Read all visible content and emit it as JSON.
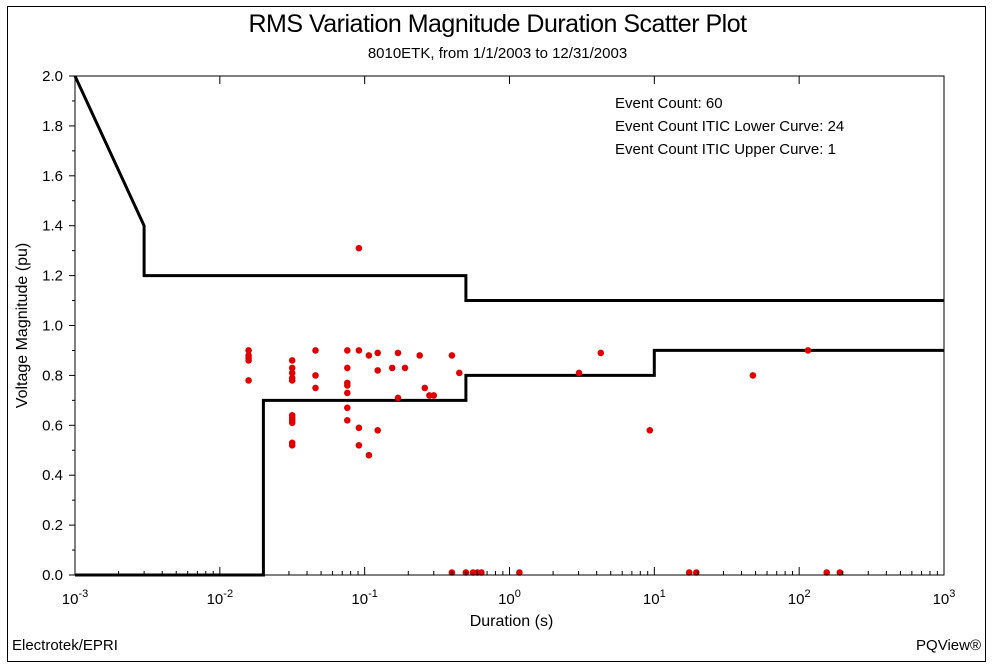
{
  "chart_data": {
    "type": "scatter",
    "title": "RMS Variation Magnitude Duration Scatter Plot",
    "subtitle": "8010ETK, from 1/1/2003 to 12/31/2003",
    "xlabel": "Duration (s)",
    "ylabel": "Voltage Magnitude (pu)",
    "xscale": "log",
    "xlim": [
      0.001,
      1000
    ],
    "ylim": [
      0,
      2.0
    ],
    "yticks": [
      "0.0",
      "0.2",
      "0.4",
      "0.6",
      "0.8",
      "1.0",
      "1.2",
      "1.4",
      "1.6",
      "1.8",
      "2.0"
    ],
    "xticks": [
      {
        "base": "10",
        "exp": "-3"
      },
      {
        "base": "10",
        "exp": "-2"
      },
      {
        "base": "10",
        "exp": "-1"
      },
      {
        "base": "10",
        "exp": "0"
      },
      {
        "base": "10",
        "exp": "1"
      },
      {
        "base": "10",
        "exp": "2"
      },
      {
        "base": "10",
        "exp": "3"
      }
    ],
    "marker_color": "#e00000",
    "line_color": "#000000",
    "stats": [
      "Event Count: 60",
      "Event Count ITIC Lower Curve: 24",
      "Event Count ITIC Upper Curve: 1"
    ],
    "itic_upper": [
      [
        0.001,
        2.0
      ],
      [
        0.003,
        1.4
      ],
      [
        0.003,
        1.2
      ],
      [
        0.5,
        1.2
      ],
      [
        0.5,
        1.1
      ],
      [
        1000,
        1.1
      ]
    ],
    "itic_lower": [
      [
        0.001,
        0.0
      ],
      [
        0.02,
        0.0
      ],
      [
        0.02,
        0.7
      ],
      [
        0.5,
        0.7
      ],
      [
        0.5,
        0.8
      ],
      [
        10,
        0.8
      ],
      [
        10,
        0.9
      ],
      [
        1000,
        0.9
      ]
    ],
    "points": [
      [
        0.0158,
        0.9
      ],
      [
        0.0158,
        0.88
      ],
      [
        0.0158,
        0.87
      ],
      [
        0.0158,
        0.86
      ],
      [
        0.0158,
        0.78
      ],
      [
        0.0316,
        0.86
      ],
      [
        0.0316,
        0.83
      ],
      [
        0.0316,
        0.81
      ],
      [
        0.0316,
        0.79
      ],
      [
        0.0316,
        0.78
      ],
      [
        0.0316,
        0.64
      ],
      [
        0.0316,
        0.63
      ],
      [
        0.0316,
        0.62
      ],
      [
        0.0316,
        0.61
      ],
      [
        0.0316,
        0.53
      ],
      [
        0.0316,
        0.52
      ],
      [
        0.0458,
        0.9
      ],
      [
        0.0458,
        0.8
      ],
      [
        0.0458,
        0.75
      ],
      [
        0.0759,
        0.9
      ],
      [
        0.0759,
        0.83
      ],
      [
        0.0759,
        0.77
      ],
      [
        0.0759,
        0.73
      ],
      [
        0.0759,
        0.67
      ],
      [
        0.0759,
        0.62
      ],
      [
        0.0912,
        1.31
      ],
      [
        0.0912,
        0.9
      ],
      [
        0.0912,
        0.59
      ],
      [
        0.0912,
        0.52
      ],
      [
        0.107,
        0.88
      ],
      [
        0.107,
        0.48
      ],
      [
        0.123,
        0.89
      ],
      [
        0.123,
        0.82
      ],
      [
        0.123,
        0.58
      ],
      [
        0.155,
        0.83
      ],
      [
        0.17,
        0.89
      ],
      [
        0.17,
        0.71
      ],
      [
        0.19,
        0.83
      ],
      [
        0.24,
        0.88
      ],
      [
        0.26,
        0.75
      ],
      [
        0.28,
        0.72
      ],
      [
        0.3,
        0.72
      ],
      [
        0.4,
        0.88
      ],
      [
        0.45,
        0.81
      ],
      [
        3.02,
        0.81
      ],
      [
        4.27,
        0.89
      ],
      [
        9.3,
        0.58
      ],
      [
        47.9,
        0.8
      ],
      [
        115,
        0.9
      ],
      [
        0.4,
        0.01
      ],
      [
        0.5,
        0.01
      ],
      [
        0.56,
        0.01
      ],
      [
        0.6,
        0.01
      ],
      [
        0.64,
        0.01
      ],
      [
        1.17,
        0.01
      ],
      [
        17.4,
        0.01
      ],
      [
        19.5,
        0.01
      ],
      [
        155,
        0.01
      ],
      [
        191,
        0.01
      ],
      [
        0.0759,
        0.76
      ]
    ]
  },
  "footer": {
    "left": "Electrotek/EPRI",
    "right": "PQView®"
  }
}
